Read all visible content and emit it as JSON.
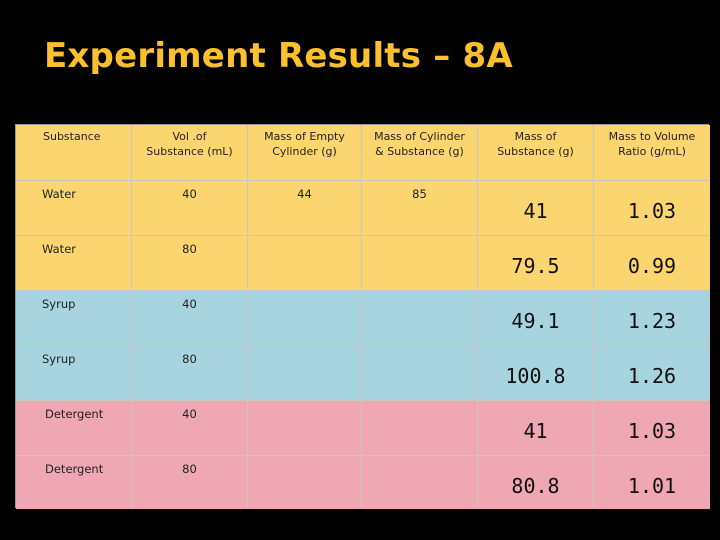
{
  "slide": {
    "title": "Experiment Results – 8A"
  },
  "table": {
    "headers": [
      "Substance",
      "Vol .of\nSubstance (mL)",
      "Mass of Empty\nCylinder (g)",
      "Mass of Cylinder\n& Substance (g)",
      "Mass of\nSubstance (g)",
      "Mass to Volume\nRatio (g/mL)"
    ],
    "rows": [
      [
        "Water",
        "40",
        "44",
        "85",
        "41",
        "1.03"
      ],
      [
        "Water",
        "80",
        "",
        "",
        "79.5",
        "0.99"
      ],
      [
        "Syrup",
        "40",
        "",
        "",
        "49.1",
        "1.23"
      ],
      [
        "Syrup",
        "80",
        "",
        "",
        "100.8",
        "1.26"
      ],
      [
        "Detergent",
        "40",
        "",
        "",
        "41",
        "1.03"
      ],
      [
        "Detergent",
        "80",
        "",
        "",
        "80.8",
        "1.01"
      ]
    ]
  },
  "colors": {
    "title": "#fbc02d",
    "header_bg": "#fbd56f",
    "water_bg": "#fbd56f",
    "syrup_bg": "#a8d4e0",
    "detergent_bg": "#f0a7b4",
    "background": "#000000"
  }
}
